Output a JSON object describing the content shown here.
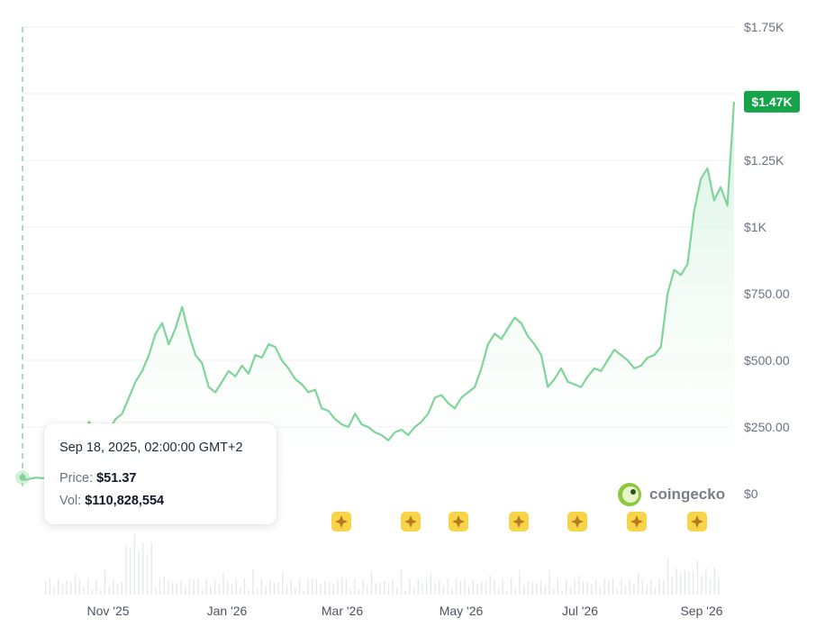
{
  "chart_data": {
    "type": "area",
    "x_axis_labels": [
      "Nov '25",
      "Jan '26",
      "Mar '26",
      "May '26",
      "Jul '26",
      "Sep '26"
    ],
    "y_axis_labels": [
      "$1.75K",
      "$1.47K",
      "$1.25K",
      "$1K",
      "$750.00",
      "$500.00",
      "$250.00",
      "$0"
    ],
    "y_ticks": [
      0,
      250,
      500,
      750,
      1000,
      1250,
      1750
    ],
    "ylim": [
      0,
      1750
    ],
    "current_price_label": "$1.47K",
    "current_price": 1470,
    "series": [
      {
        "values": [
          51,
          55,
          60,
          58,
          62,
          70,
          90,
          140,
          180,
          210,
          270,
          230,
          260,
          240,
          280,
          300,
          360,
          420,
          460,
          520,
          600,
          640,
          560,
          620,
          700,
          600,
          520,
          490,
          400,
          380,
          420,
          460,
          440,
          480,
          450,
          520,
          510,
          560,
          550,
          500,
          470,
          430,
          410,
          380,
          390,
          320,
          310,
          280,
          260,
          250,
          300,
          260,
          250,
          230,
          220,
          200,
          230,
          240,
          220,
          250,
          270,
          300,
          360,
          370,
          340,
          320,
          360,
          380,
          400,
          470,
          560,
          600,
          580,
          620,
          660,
          640,
          590,
          560,
          520,
          400,
          430,
          470,
          420,
          410,
          400,
          440,
          470,
          460,
          500,
          540,
          520,
          500,
          470,
          480,
          510,
          520,
          550,
          750,
          840,
          820,
          860,
          1060,
          1180,
          1220,
          1100,
          1150,
          1080,
          1470
        ]
      }
    ],
    "events": [
      {
        "icon": "sparkle-badge-icon"
      },
      {
        "icon": "sparkle-badge-icon"
      },
      {
        "icon": "sparkle-badge-icon"
      },
      {
        "icon": "sparkle-badge-icon"
      },
      {
        "icon": "sparkle-badge-icon"
      },
      {
        "icon": "sparkle-badge-icon"
      },
      {
        "icon": "sparkle-badge-icon"
      }
    ],
    "colors": {
      "line": "#7fd49a",
      "area_top": "#c9efd6",
      "price_badge": "#16a34a",
      "event_badge": "#f8d548",
      "grid": "#f1f1f3",
      "crosshair": "#7fd49a"
    }
  },
  "tooltip": {
    "date": "Sep 18, 2025, 02:00:00 GMT+2",
    "price_label": "Price:",
    "price_value": "$51.37",
    "vol_label": "Vol:",
    "vol_value": "$110,828,554"
  },
  "brand": {
    "name": "coingecko",
    "icon": "coingecko-logo-icon"
  }
}
